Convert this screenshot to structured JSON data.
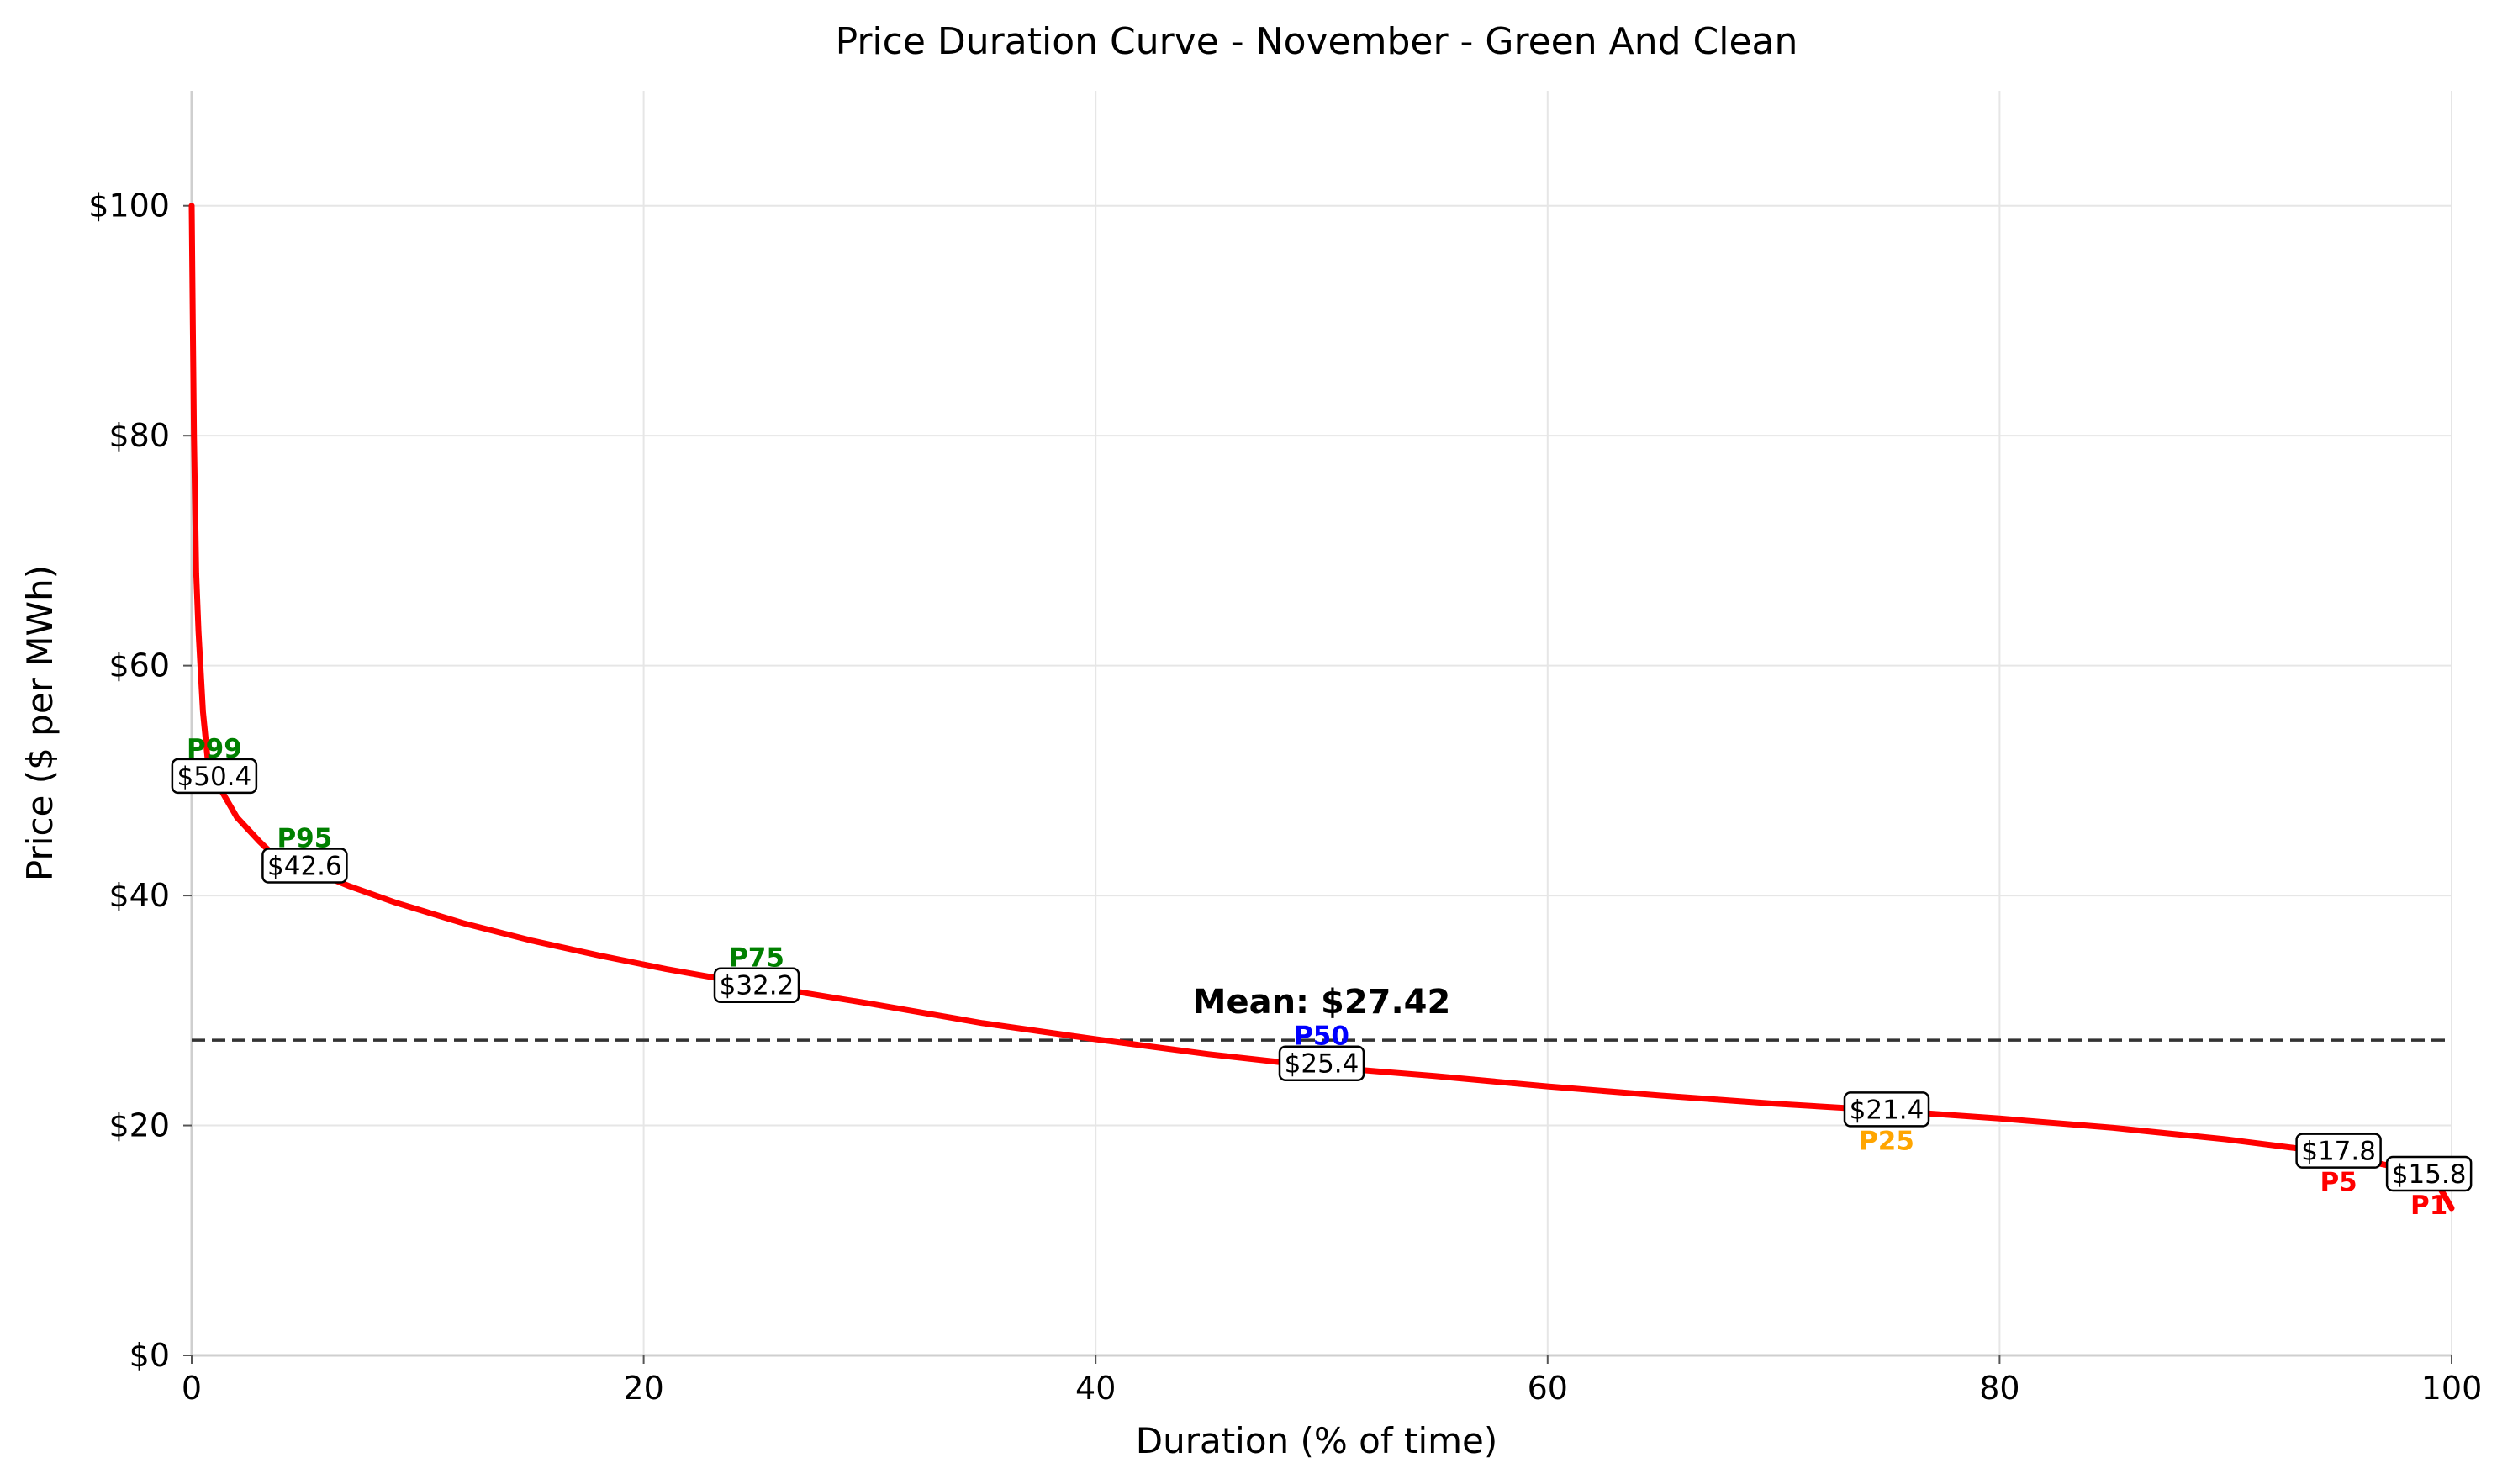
{
  "chart_data": {
    "type": "line",
    "title": "Price Duration Curve - November - Green And Clean",
    "xlabel": "Duration (% of time)",
    "ylabel": "Price ($ per MWh)",
    "xlim": [
      0,
      100
    ],
    "ylim": [
      0,
      110
    ],
    "x_ticks": [
      0,
      20,
      40,
      60,
      80,
      100
    ],
    "x_tick_labels": [
      "0",
      "20",
      "40",
      "60",
      "80",
      "100"
    ],
    "y_ticks": [
      0,
      20,
      40,
      60,
      80,
      100
    ],
    "y_tick_labels": [
      "$0",
      "$20",
      "$40",
      "$60",
      "$80",
      "$100"
    ],
    "grid": true,
    "series": [
      {
        "color": "#ff0000",
        "x": [
          0,
          0.05,
          0.1,
          0.2,
          0.3,
          0.5,
          0.7,
          1,
          1.5,
          2,
          3,
          4,
          5,
          7,
          9,
          12,
          15,
          18,
          21,
          25,
          30,
          35,
          40,
          45,
          50,
          55,
          60,
          65,
          70,
          75,
          80,
          85,
          90,
          94,
          96,
          98,
          99,
          99.5,
          99.8,
          100
        ],
        "y": [
          100,
          90,
          80,
          68,
          63,
          56,
          52,
          50.2,
          48.5,
          46.8,
          44.7,
          42.8,
          42.4,
          40.8,
          39.4,
          37.6,
          36.1,
          34.8,
          33.6,
          32.2,
          30.6,
          28.9,
          27.5,
          26.2,
          25.1,
          24.3,
          23.4,
          22.6,
          21.9,
          21.3,
          20.6,
          19.8,
          18.8,
          17.8,
          17.0,
          16.2,
          15.6,
          14.5,
          13.5,
          12.8
        ]
      }
    ],
    "mean": {
      "value": 27.42,
      "label": "Mean: $27.42",
      "color": "#333333"
    },
    "percentiles": [
      {
        "name": "P99",
        "value_label": "$50.4",
        "x": 1,
        "y": 50.4,
        "color": "#008000",
        "name_position": "above"
      },
      {
        "name": "P95",
        "value_label": "$42.6",
        "x": 5,
        "y": 42.6,
        "color": "#008000",
        "name_position": "above"
      },
      {
        "name": "P75",
        "value_label": "$32.2",
        "x": 25,
        "y": 32.2,
        "color": "#008000",
        "name_position": "above"
      },
      {
        "name": "P50",
        "value_label": "$25.4",
        "x": 50,
        "y": 25.4,
        "color": "#0000ff",
        "name_position": "above"
      },
      {
        "name": "P25",
        "value_label": "$21.4",
        "x": 75,
        "y": 21.4,
        "color": "#ffa500",
        "name_position": "below"
      },
      {
        "name": "P5",
        "value_label": "$17.8",
        "x": 95,
        "y": 17.8,
        "color": "#ff0000",
        "name_position": "below"
      },
      {
        "name": "P1",
        "value_label": "$15.8",
        "x": 99,
        "y": 15.8,
        "color": "#ff0000",
        "name_position": "below"
      }
    ]
  }
}
